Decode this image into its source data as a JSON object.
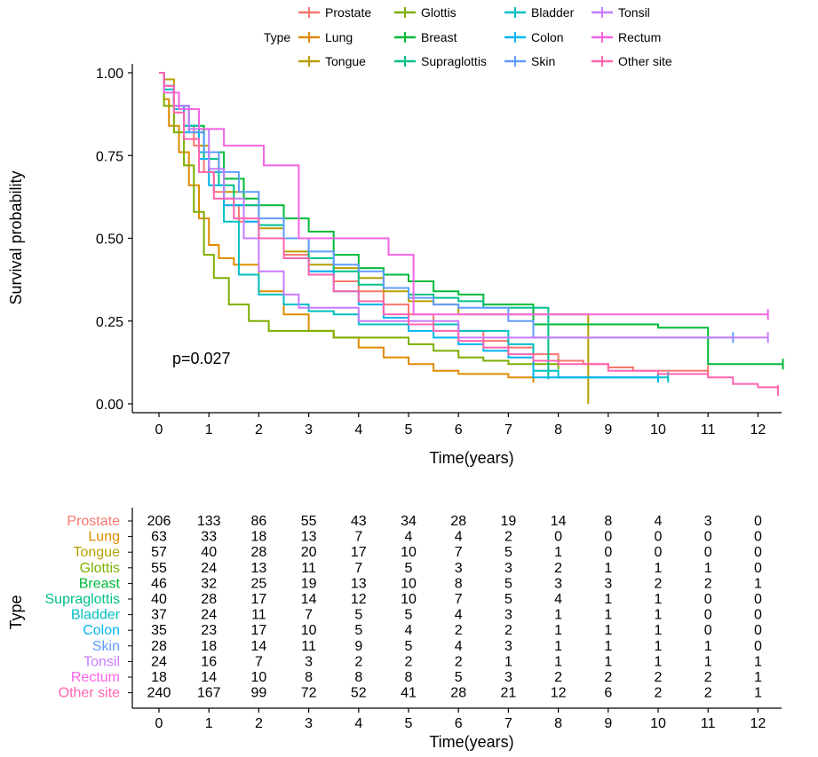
{
  "chart_data": {
    "type": "line",
    "subtype": "kaplan-meier",
    "xlabel": "Time(years)",
    "ylabel": "Survival probability",
    "xlim": [
      0,
      12.5
    ],
    "ylim": [
      0,
      1
    ],
    "x_ticks": [
      0,
      1,
      2,
      3,
      4,
      5,
      6,
      7,
      8,
      9,
      10,
      11,
      12
    ],
    "y_ticks": [
      "0.00",
      "0.25",
      "0.50",
      "0.75",
      "1.00"
    ],
    "grid": false,
    "pvalue_text": "p=0.027",
    "legend": {
      "title": "Type",
      "position": "top",
      "entries": [
        "Prostate",
        "Lung",
        "Tongue",
        "Glottis",
        "Breast",
        "Supraglottis",
        "Bladder",
        "Colon",
        "Skin",
        "Tonsil",
        "Rectum",
        "Other site"
      ]
    },
    "series": [
      {
        "name": "Prostate",
        "color": "#F8766D",
        "times": [
          0,
          0.1,
          0.3,
          0.5,
          0.7,
          0.9,
          1.1,
          1.3,
          1.6,
          2,
          2.5,
          3,
          3.5,
          4,
          4.5,
          5,
          5.5,
          6,
          6.5,
          7,
          7.5,
          8,
          8.5,
          9,
          9.5,
          10,
          10.5,
          11
        ],
        "surv": [
          1,
          0.96,
          0.9,
          0.84,
          0.78,
          0.7,
          0.64,
          0.6,
          0.55,
          0.5,
          0.45,
          0.4,
          0.37,
          0.34,
          0.3,
          0.27,
          0.24,
          0.22,
          0.19,
          0.17,
          0.15,
          0.13,
          0.12,
          0.11,
          0.1,
          0.1,
          0.1,
          0.1
        ]
      },
      {
        "name": "Lung",
        "color": "#DE8C00",
        "times": [
          0,
          0.1,
          0.2,
          0.4,
          0.6,
          0.8,
          1,
          1.2,
          1.5,
          2,
          2.5,
          3,
          3.5,
          4,
          4.5,
          5,
          5.5,
          6,
          6.5,
          7,
          7.5
        ],
        "surv": [
          1,
          0.92,
          0.84,
          0.76,
          0.66,
          0.56,
          0.48,
          0.44,
          0.42,
          0.34,
          0.27,
          0.22,
          0.2,
          0.17,
          0.14,
          0.12,
          0.1,
          0.09,
          0.09,
          0.08,
          0.08
        ]
      },
      {
        "name": "Tongue",
        "color": "#B79F00",
        "times": [
          0,
          0.1,
          0.3,
          0.5,
          0.8,
          1,
          1.3,
          1.7,
          2,
          2.5,
          3,
          3.5,
          4,
          4.5,
          5,
          5.5,
          6,
          7,
          8,
          8.5,
          8.6
        ],
        "surv": [
          1,
          0.98,
          0.9,
          0.84,
          0.78,
          0.7,
          0.64,
          0.6,
          0.53,
          0.46,
          0.42,
          0.41,
          0.38,
          0.34,
          0.31,
          0.3,
          0.27,
          0.27,
          0.27,
          0.27,
          0
        ]
      },
      {
        "name": "Glottis",
        "color": "#7CAE00",
        "times": [
          0,
          0.1,
          0.3,
          0.5,
          0.7,
          0.9,
          1.1,
          1.4,
          1.8,
          2.2,
          3,
          3.5,
          4,
          5,
          5.5,
          6,
          6.5,
          7,
          8
        ],
        "surv": [
          1,
          0.9,
          0.82,
          0.72,
          0.58,
          0.45,
          0.38,
          0.3,
          0.25,
          0.22,
          0.22,
          0.2,
          0.2,
          0.18,
          0.16,
          0.14,
          0.13,
          0.12,
          0.12
        ]
      },
      {
        "name": "Breast",
        "color": "#00BA38",
        "times": [
          0,
          0.1,
          0.3,
          0.6,
          0.9,
          1.3,
          1.7,
          2,
          2.5,
          3,
          3.5,
          4,
          4.5,
          5,
          5.5,
          6,
          6.5,
          7,
          7.5,
          8,
          9,
          10,
          11,
          12.5
        ],
        "surv": [
          1,
          0.96,
          0.9,
          0.84,
          0.76,
          0.68,
          0.62,
          0.6,
          0.56,
          0.52,
          0.45,
          0.41,
          0.39,
          0.37,
          0.34,
          0.33,
          0.3,
          0.3,
          0.24,
          0.24,
          0.24,
          0.23,
          0.12,
          0.12
        ]
      },
      {
        "name": "Supraglottis",
        "color": "#00C08B",
        "times": [
          0,
          0.1,
          0.3,
          0.6,
          0.9,
          1.2,
          1.5,
          2,
          2.5,
          3,
          3.5,
          4,
          4.5,
          5,
          5.5,
          6,
          6.5,
          7,
          7.5,
          7.8
        ],
        "surv": [
          1,
          0.96,
          0.9,
          0.82,
          0.74,
          0.66,
          0.6,
          0.54,
          0.5,
          0.44,
          0.4,
          0.36,
          0.35,
          0.33,
          0.32,
          0.31,
          0.29,
          0.29,
          0.29,
          0.09
        ]
      },
      {
        "name": "Bladder",
        "color": "#00BFC4",
        "times": [
          0,
          0.1,
          0.3,
          0.5,
          0.8,
          1,
          1.3,
          1.6,
          2,
          2.5,
          3,
          3.5,
          4,
          5,
          6,
          7,
          7.5,
          8,
          9,
          10,
          10.2
        ],
        "surv": [
          1,
          0.95,
          0.89,
          0.84,
          0.76,
          0.7,
          0.55,
          0.39,
          0.33,
          0.3,
          0.28,
          0.27,
          0.24,
          0.24,
          0.22,
          0.18,
          0.1,
          0.08,
          0.08,
          0.08,
          0.08
        ]
      },
      {
        "name": "Colon",
        "color": "#00B4F0",
        "times": [
          0,
          0.1,
          0.3,
          0.5,
          0.8,
          1,
          1.3,
          1.7,
          2,
          2.5,
          3,
          3.5,
          4,
          4.5,
          5,
          5.5,
          6,
          6.5,
          7,
          7.5,
          8,
          9,
          10
        ],
        "surv": [
          1,
          0.96,
          0.9,
          0.82,
          0.74,
          0.66,
          0.6,
          0.55,
          0.5,
          0.44,
          0.4,
          0.34,
          0.3,
          0.26,
          0.22,
          0.2,
          0.18,
          0.16,
          0.14,
          0.08,
          0.08,
          0.08,
          0.08
        ]
      },
      {
        "name": "Skin",
        "color": "#619CFF",
        "times": [
          0,
          0.1,
          0.3,
          0.6,
          0.9,
          1.2,
          1.6,
          2,
          2.5,
          3,
          3.5,
          4,
          4.5,
          5,
          5.5,
          6,
          7,
          7.5,
          8,
          9,
          10,
          11.5
        ],
        "surv": [
          1,
          0.96,
          0.9,
          0.82,
          0.76,
          0.7,
          0.64,
          0.56,
          0.5,
          0.46,
          0.42,
          0.4,
          0.35,
          0.32,
          0.3,
          0.29,
          0.25,
          0.2,
          0.2,
          0.2,
          0.2,
          0.2
        ]
      },
      {
        "name": "Tonsil",
        "color": "#C77CFF",
        "times": [
          0,
          0.1,
          0.3,
          0.6,
          1,
          1.3,
          1.7,
          2,
          2.5,
          2.8,
          3.5,
          4,
          5,
          6,
          7,
          8,
          9,
          10,
          11,
          12.2
        ],
        "surv": [
          1,
          0.96,
          0.9,
          0.83,
          0.71,
          0.62,
          0.5,
          0.4,
          0.33,
          0.29,
          0.29,
          0.25,
          0.25,
          0.2,
          0.2,
          0.2,
          0.2,
          0.2,
          0.2,
          0.2
        ]
      },
      {
        "name": "Rectum",
        "color": "#F564E3",
        "times": [
          0,
          0.1,
          0.4,
          0.8,
          1.3,
          2.1,
          2.8,
          4.6,
          5.1,
          6,
          7,
          8,
          9,
          10,
          11,
          12.2
        ],
        "surv": [
          1,
          0.94,
          0.89,
          0.83,
          0.78,
          0.72,
          0.5,
          0.45,
          0.27,
          0.27,
          0.27,
          0.27,
          0.27,
          0.27,
          0.27,
          0.27
        ]
      },
      {
        "name": "Other site",
        "color": "#FF64B0",
        "times": [
          0,
          0.1,
          0.3,
          0.5,
          0.8,
          1.1,
          1.5,
          2,
          2.5,
          3,
          3.5,
          4,
          4.5,
          5,
          5.5,
          6,
          6.5,
          7,
          7.5,
          8,
          9,
          10,
          11,
          11.5,
          12,
          12.4
        ],
        "surv": [
          1,
          0.96,
          0.88,
          0.8,
          0.7,
          0.62,
          0.56,
          0.5,
          0.44,
          0.39,
          0.34,
          0.31,
          0.27,
          0.24,
          0.22,
          0.19,
          0.17,
          0.15,
          0.13,
          0.12,
          0.1,
          0.09,
          0.08,
          0.06,
          0.05,
          0.04
        ]
      }
    ],
    "risk_table": {
      "ylabel": "Type",
      "xlabel": "Time(years)",
      "times": [
        0,
        1,
        2,
        3,
        4,
        5,
        6,
        7,
        8,
        9,
        10,
        11,
        12
      ],
      "rows": [
        {
          "name": "Prostate",
          "color": "#F8766D",
          "counts": [
            206,
            133,
            86,
            55,
            43,
            34,
            28,
            19,
            14,
            8,
            4,
            3,
            0
          ]
        },
        {
          "name": "Lung",
          "color": "#DE8C00",
          "counts": [
            63,
            33,
            18,
            13,
            7,
            4,
            4,
            2,
            0,
            0,
            0,
            0,
            0
          ]
        },
        {
          "name": "Tongue",
          "color": "#B79F00",
          "counts": [
            57,
            40,
            28,
            20,
            17,
            10,
            7,
            5,
            1,
            0,
            0,
            0,
            0
          ]
        },
        {
          "name": "Glottis",
          "color": "#7CAE00",
          "counts": [
            55,
            24,
            13,
            11,
            7,
            5,
            3,
            3,
            2,
            1,
            1,
            1,
            0
          ]
        },
        {
          "name": "Breast",
          "color": "#00BA38",
          "counts": [
            46,
            32,
            25,
            19,
            13,
            10,
            8,
            5,
            3,
            3,
            2,
            2,
            1
          ]
        },
        {
          "name": "Supraglottis",
          "color": "#00C08B",
          "counts": [
            40,
            28,
            17,
            14,
            12,
            10,
            7,
            5,
            4,
            1,
            1,
            0,
            0
          ]
        },
        {
          "name": "Bladder",
          "color": "#00BFC4",
          "counts": [
            37,
            24,
            11,
            7,
            5,
            5,
            4,
            3,
            1,
            1,
            1,
            0,
            0
          ]
        },
        {
          "name": "Colon",
          "color": "#00B4F0",
          "counts": [
            35,
            23,
            17,
            10,
            5,
            4,
            2,
            2,
            1,
            1,
            1,
            0,
            0
          ]
        },
        {
          "name": "Skin",
          "color": "#619CFF",
          "counts": [
            28,
            18,
            14,
            11,
            9,
            5,
            4,
            3,
            1,
            1,
            1,
            1,
            0
          ]
        },
        {
          "name": "Tonsil",
          "color": "#C77CFF",
          "counts": [
            24,
            16,
            7,
            3,
            2,
            2,
            2,
            1,
            1,
            1,
            1,
            1,
            1
          ]
        },
        {
          "name": "Rectum",
          "color": "#F564E3",
          "counts": [
            18,
            14,
            10,
            8,
            8,
            8,
            5,
            3,
            2,
            2,
            2,
            2,
            1
          ]
        },
        {
          "name": "Other site",
          "color": "#FF64B0",
          "counts": [
            240,
            167,
            99,
            72,
            52,
            41,
            28,
            21,
            12,
            6,
            2,
            2,
            1
          ]
        }
      ]
    }
  }
}
